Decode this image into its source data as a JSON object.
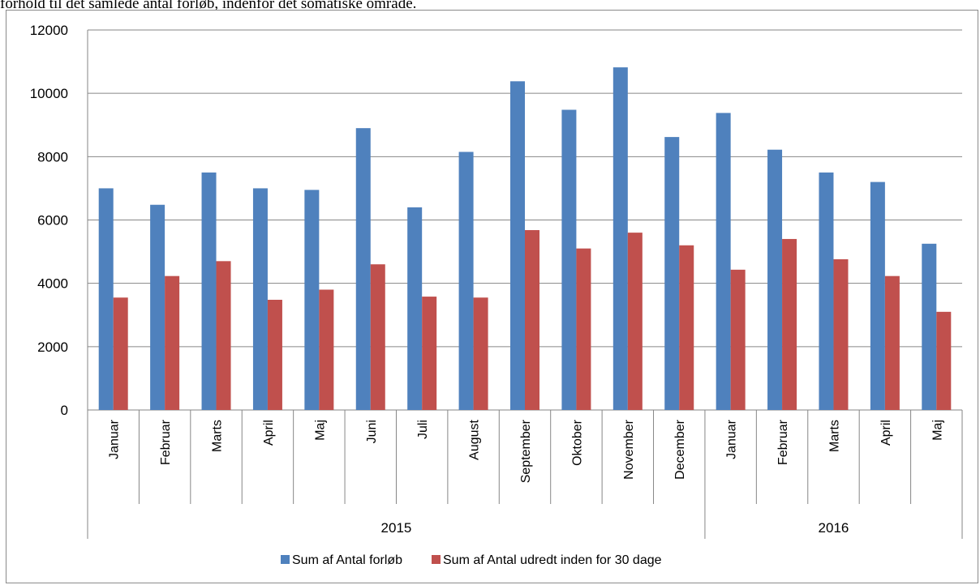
{
  "caption": "forhold til det samlede antal forløb, indenfor det somatiske område.",
  "chart_data": {
    "type": "bar",
    "categories": [
      "Januar",
      "Februar",
      "Marts",
      "April",
      "Maj",
      "Juni",
      "Juli",
      "August",
      "September",
      "Oktober",
      "November",
      "December",
      "Januar",
      "Februar",
      "Marts",
      "April",
      "Maj"
    ],
    "groups": [
      {
        "label": "2015",
        "count": 12
      },
      {
        "label": "2016",
        "count": 5
      }
    ],
    "series": [
      {
        "name": "Sum af Antal forløb",
        "color": "#4f81bd",
        "values": [
          7000,
          6480,
          7500,
          7000,
          6950,
          8900,
          6400,
          8150,
          10380,
          9480,
          10820,
          8620,
          9380,
          8220,
          7500,
          7200,
          5250
        ]
      },
      {
        "name": "Sum af Antal udredt inden for 30 dage",
        "color": "#c0504d",
        "values": [
          3550,
          4230,
          4700,
          3480,
          3800,
          4600,
          3580,
          3550,
          5680,
          5100,
          5600,
          5200,
          4430,
          5400,
          4760,
          4230,
          3100
        ]
      }
    ],
    "yticks": [
      0,
      2000,
      4000,
      6000,
      8000,
      10000,
      12000
    ],
    "ylim": [
      0,
      12000
    ],
    "grid": true,
    "legend": "bottom"
  }
}
